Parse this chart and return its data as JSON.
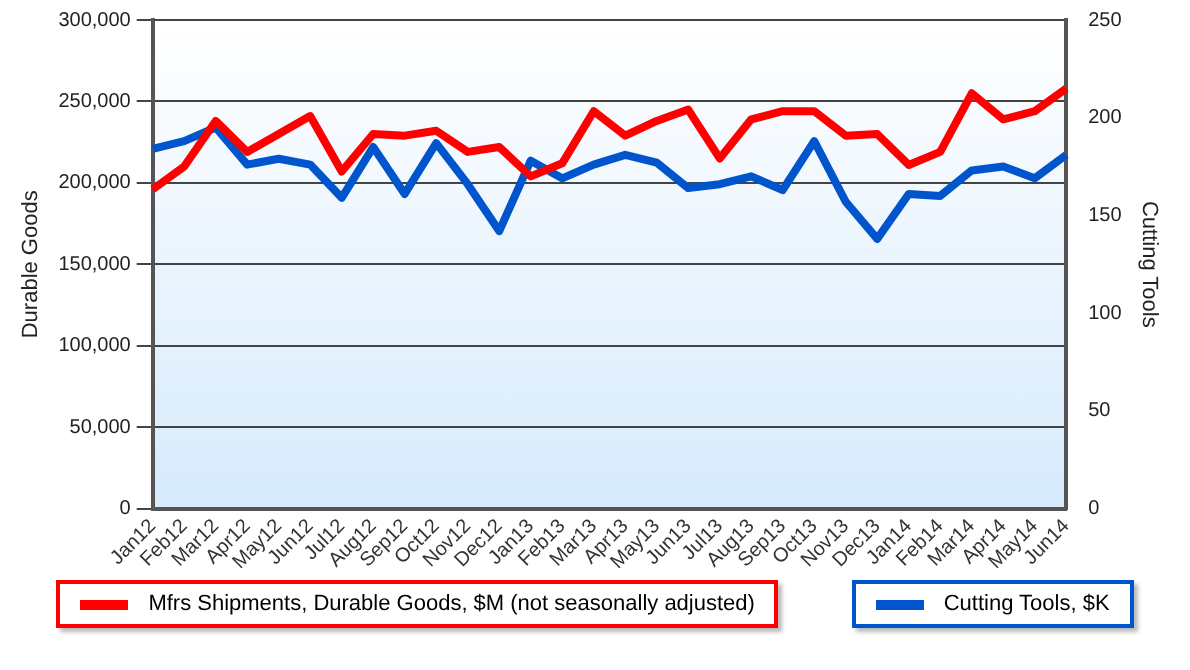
{
  "chart_data": {
    "type": "line",
    "ylabel": "Durable Goods",
    "y2label": "Cutting Tools",
    "categories": [
      "Jan12",
      "Feb12",
      "Mar12",
      "Apr12",
      "May12",
      "Jun12",
      "Jul12",
      "Aug12",
      "Sep12",
      "Oct12",
      "Nov12",
      "Dec12",
      "Jan13",
      "Feb13",
      "Mar13",
      "Apr13",
      "May13",
      "Jun13",
      "Jul13",
      "Aug13",
      "Sep13",
      "Oct13",
      "Nov13",
      "Dec13",
      "Jan14",
      "Feb14",
      "Mar14",
      "Apr14",
      "May14",
      "Jun14"
    ],
    "series": [
      {
        "name": "Mfrs Shipments, Durable Goods, $M (not seasonally adjusted)",
        "color": "#ff0000",
        "values": [
          196000,
          210000,
          238000,
          219000,
          230000,
          241000,
          207000,
          230000,
          229000,
          232000,
          219000,
          222000,
          204000,
          212000,
          244000,
          229000,
          238000,
          245000,
          215000,
          239000,
          244000,
          244000,
          229000,
          230000,
          211000,
          219000,
          255000,
          239000,
          244000,
          258000
        ]
      },
      {
        "name": "Cutting Tools, $K",
        "color": "#0055cc",
        "axis": "y2",
        "values": [
          184,
          188,
          195,
          176,
          179,
          176,
          159,
          185,
          161,
          187,
          166,
          142,
          178,
          169,
          176,
          181,
          177,
          164,
          166,
          170,
          163,
          188,
          157,
          138,
          161,
          160,
          173,
          175,
          169,
          181
        ]
      }
    ],
    "ylim": [
      0,
      300000
    ],
    "yticks": [
      0,
      {
        "value": 50000,
        "label": "50,000"
      },
      {
        "value": 100000,
        "label": "100,000"
      },
      {
        "value": 150000,
        "label": "150,000"
      },
      {
        "value": 200000,
        "label": "200,000"
      },
      {
        "value": 250000,
        "label": "250,000"
      },
      {
        "value": 300000,
        "label": "300,000"
      }
    ],
    "y2lim": [
      0,
      250
    ],
    "y2ticks": [
      0,
      50,
      100,
      150,
      200,
      250
    ],
    "grid": "y",
    "legend": "bottom",
    "marker": "none",
    "line_style": "solid"
  }
}
